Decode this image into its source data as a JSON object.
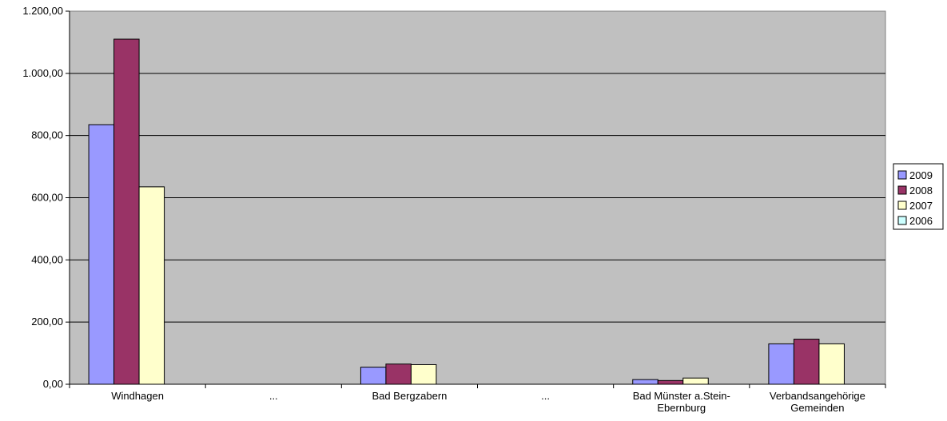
{
  "chart_data": {
    "type": "bar",
    "categories": [
      "Windhagen",
      "...",
      "Bad Bergzabern",
      "...",
      "Bad Münster a.Stein-\nEbernburg",
      "Verbandsangehörige\nGemeinden"
    ],
    "series": [
      {
        "name": "2009",
        "color": "#9999ff",
        "values": [
          835,
          0,
          55,
          0,
          15,
          130
        ]
      },
      {
        "name": "2008",
        "color": "#993366",
        "values": [
          1110,
          0,
          65,
          0,
          12,
          145
        ]
      },
      {
        "name": "2007",
        "color": "#ffffcc",
        "values": [
          635,
          0,
          63,
          0,
          20,
          130
        ]
      },
      {
        "name": "2006",
        "color": "#ccffff",
        "values": [
          0,
          0,
          0,
          0,
          0,
          0
        ]
      }
    ],
    "yticks": [
      "0,00",
      "200,00",
      "400,00",
      "600,00",
      "800,00",
      "1.000,00",
      "1.200,00"
    ],
    "ylim": [
      0,
      1200
    ],
    "plot_background": "#c0c0c0",
    "grid": true,
    "legend_position": "right",
    "title": "",
    "xlabel": "",
    "ylabel": ""
  }
}
